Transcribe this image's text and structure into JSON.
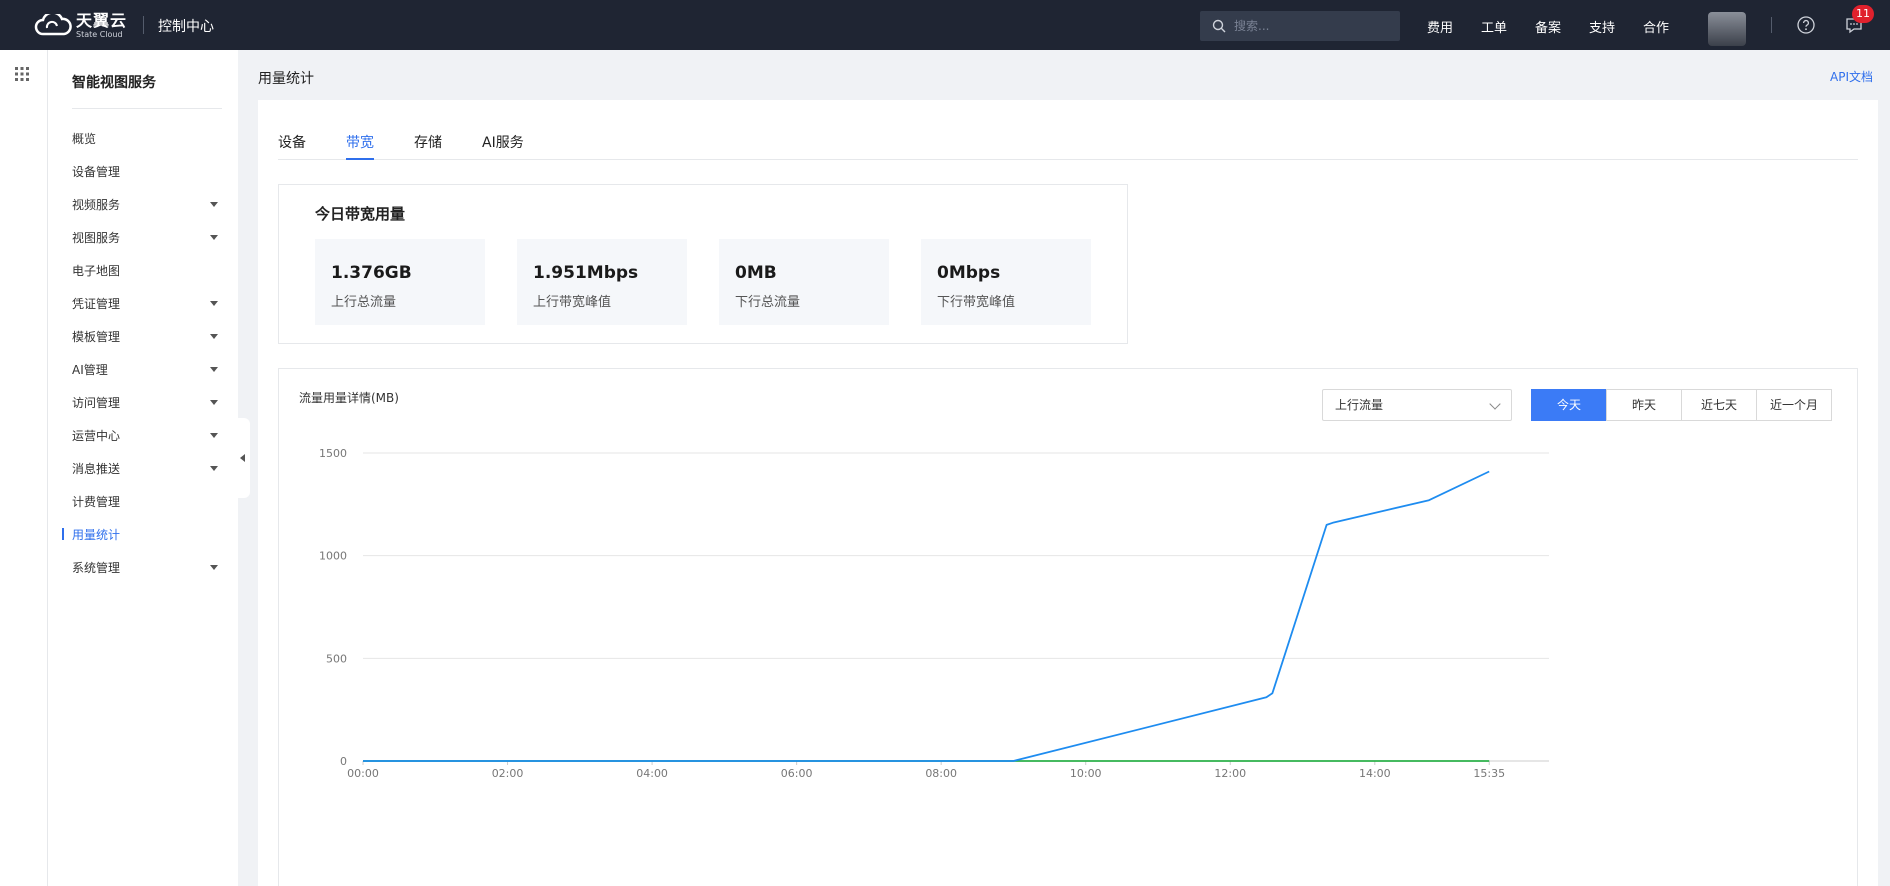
{
  "header": {
    "logo_cn": "天翼云",
    "logo_en": "State Cloud",
    "console_title": "控制中心",
    "search_placeholder": "搜索...",
    "nav": [
      "费用",
      "工单",
      "备案",
      "支持",
      "合作"
    ],
    "message_count": "11"
  },
  "sidebar": {
    "title": "智能视图服务",
    "items": [
      {
        "label": "概览",
        "expandable": false
      },
      {
        "label": "设备管理",
        "expandable": false
      },
      {
        "label": "视频服务",
        "expandable": true
      },
      {
        "label": "视图服务",
        "expandable": true
      },
      {
        "label": "电子地图",
        "expandable": false
      },
      {
        "label": "凭证管理",
        "expandable": true
      },
      {
        "label": "模板管理",
        "expandable": true
      },
      {
        "label": "AI管理",
        "expandable": true
      },
      {
        "label": "访问管理",
        "expandable": true
      },
      {
        "label": "运营中心",
        "expandable": true
      },
      {
        "label": "消息推送",
        "expandable": true
      },
      {
        "label": "计费管理",
        "expandable": false
      },
      {
        "label": "用量统计",
        "expandable": false,
        "active": true
      },
      {
        "label": "系统管理",
        "expandable": true
      }
    ]
  },
  "main": {
    "breadcrumb": "用量统计",
    "api_link": "API文档",
    "tabs": [
      {
        "label": "设备",
        "active": false
      },
      {
        "label": "带宽",
        "active": true
      },
      {
        "label": "存储",
        "active": false
      },
      {
        "label": "AI服务",
        "active": false
      }
    ],
    "today": {
      "title": "今日带宽用量",
      "stats": [
        {
          "value": "1.376GB",
          "label": "上行总流量"
        },
        {
          "value": "1.951Mbps",
          "label": "上行带宽峰值"
        },
        {
          "value": "0MB",
          "label": "下行总流量"
        },
        {
          "value": "0Mbps",
          "label": "下行带宽峰值"
        }
      ]
    },
    "chart_panel": {
      "title": "流量用量详情(MB)",
      "select_value": "上行流量",
      "ranges": [
        {
          "label": "今天",
          "active": true
        },
        {
          "label": "昨天",
          "active": false
        },
        {
          "label": "近七天",
          "active": false
        },
        {
          "label": "近一个月",
          "active": false
        }
      ]
    }
  },
  "colors": {
    "accent": "#2f6fec",
    "topbar": "#1f2533",
    "series_upload": "#1e8cf0",
    "series_download": "#2bb14a"
  },
  "chart_data": {
    "type": "line",
    "ylabel": "流量用量详情(MB)",
    "ylim": [
      0,
      1500
    ],
    "yticks": [
      0,
      500,
      1000,
      1500
    ],
    "xticks": [
      "00:00",
      "02:00",
      "04:00",
      "06:00",
      "08:00",
      "10:00",
      "12:00",
      "14:00",
      "15:35"
    ],
    "x_range_hours": [
      0,
      15.58
    ],
    "grid": true,
    "series": [
      {
        "key": "upload",
        "points": [
          {
            "x": "00:00",
            "y": 0
          },
          {
            "x": "09:00",
            "y": 0
          },
          {
            "x": "12:30",
            "y": 310
          },
          {
            "x": "12:35",
            "y": 330
          },
          {
            "x": "13:20",
            "y": 1150
          },
          {
            "x": "13:25",
            "y": 1160
          },
          {
            "x": "14:45",
            "y": 1270
          },
          {
            "x": "15:35",
            "y": 1410
          }
        ]
      },
      {
        "key": "download",
        "points": [
          {
            "x": "00:00",
            "y": 0
          },
          {
            "x": "15:35",
            "y": 0
          }
        ]
      }
    ]
  }
}
